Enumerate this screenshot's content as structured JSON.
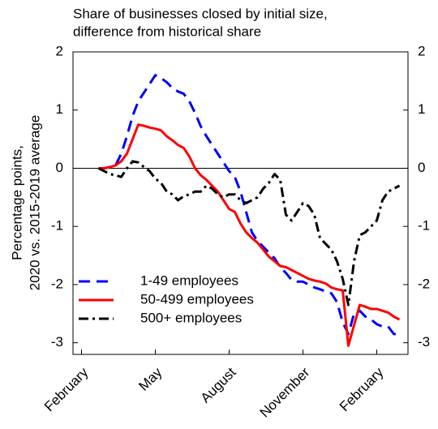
{
  "chart_data": {
    "type": "line",
    "title": [
      "Share of businesses closed by initial size,",
      "difference from historical share"
    ],
    "ylabel": [
      "Percentage points,",
      "2020 vs. 2015-2019 average"
    ],
    "categories": [
      null,
      "February",
      null,
      null,
      null,
      null,
      null,
      null,
      null,
      null,
      null,
      null,
      null,
      null,
      "May",
      null,
      null,
      null,
      null,
      null,
      null,
      null,
      null,
      null,
      null,
      null,
      null,
      "August",
      null,
      null,
      null,
      null,
      null,
      null,
      null,
      null,
      null,
      null,
      null,
      null,
      "November",
      null,
      null,
      null,
      null,
      null,
      null,
      null,
      null,
      null,
      null,
      null,
      null,
      "February",
      null,
      null,
      null,
      null,
      null
    ],
    "series": [
      {
        "name": "1-49 employees",
        "color": "#0000ff",
        "linestyle": "dashed",
        "values": [
          null,
          null,
          null,
          null,
          0,
          0,
          0.02,
          0.05,
          0.25,
          0.55,
          0.9,
          1.15,
          1.3,
          1.45,
          1.6,
          1.55,
          1.48,
          1.38,
          1.32,
          1.28,
          1.15,
          0.95,
          0.72,
          0.55,
          0.4,
          0.25,
          0.1,
          -0.05,
          -0.15,
          -0.4,
          -0.75,
          -1.1,
          -1.25,
          -1.35,
          -1.45,
          -1.55,
          -1.7,
          -1.8,
          -1.92,
          -1.95,
          -1.95,
          -2.0,
          -2.05,
          -2.08,
          -2.12,
          -2.15,
          -2.3,
          -2.65,
          -2.85,
          -2.5,
          -2.45,
          -2.55,
          -2.6,
          -2.68,
          -2.72,
          -2.72,
          -2.85,
          -2.85,
          null
        ]
      },
      {
        "name": "50-499 employees",
        "color": "#ff0000",
        "linestyle": "solid",
        "values": [
          null,
          null,
          null,
          null,
          0,
          0,
          0.02,
          0.05,
          0.12,
          0.25,
          0.5,
          0.75,
          0.73,
          0.7,
          0.68,
          0.65,
          0.55,
          0.48,
          0.4,
          0.35,
          0.2,
          0.0,
          -0.12,
          -0.2,
          -0.3,
          -0.4,
          -0.55,
          -0.7,
          -0.75,
          -0.95,
          -1.1,
          -1.2,
          -1.28,
          -1.4,
          -1.52,
          -1.6,
          -1.68,
          -1.7,
          -1.75,
          -1.8,
          -1.85,
          -1.9,
          -1.93,
          -1.95,
          -1.98,
          -2.05,
          -2.08,
          -2.1,
          -3.05,
          -2.7,
          -2.35,
          -2.38,
          -2.42,
          -2.42,
          -2.45,
          -2.48,
          -2.55,
          -2.6,
          null
        ]
      },
      {
        "name": "500+ employees",
        "color": "#000000",
        "linestyle": "dashdot",
        "values": [
          null,
          null,
          null,
          null,
          0,
          -0.05,
          -0.1,
          -0.12,
          -0.15,
          0,
          0.12,
          0.1,
          0.02,
          -0.05,
          -0.18,
          -0.25,
          -0.4,
          -0.45,
          -0.55,
          -0.48,
          -0.45,
          -0.4,
          -0.4,
          -0.3,
          -0.35,
          -0.45,
          -0.5,
          -0.45,
          -0.45,
          -0.55,
          -0.6,
          -0.55,
          -0.5,
          -0.35,
          -0.25,
          -0.1,
          -0.2,
          -0.8,
          -0.9,
          -0.75,
          -0.6,
          -0.65,
          -0.8,
          -1.2,
          -1.3,
          -1.4,
          -1.6,
          -1.9,
          -2.35,
          -1.6,
          -1.15,
          -1.1,
          -1.0,
          -0.9,
          -0.55,
          -0.4,
          -0.35,
          -0.3,
          null
        ]
      }
    ],
    "ylim": [
      -3.2,
      2
    ],
    "yticks": [
      -3,
      -2,
      -1,
      0,
      1,
      2
    ],
    "y2lim": [
      -3.2,
      2
    ],
    "y2ticks": [
      -3,
      -2,
      -1,
      0,
      1,
      2
    ],
    "hline": 0,
    "legend": "lower left"
  }
}
